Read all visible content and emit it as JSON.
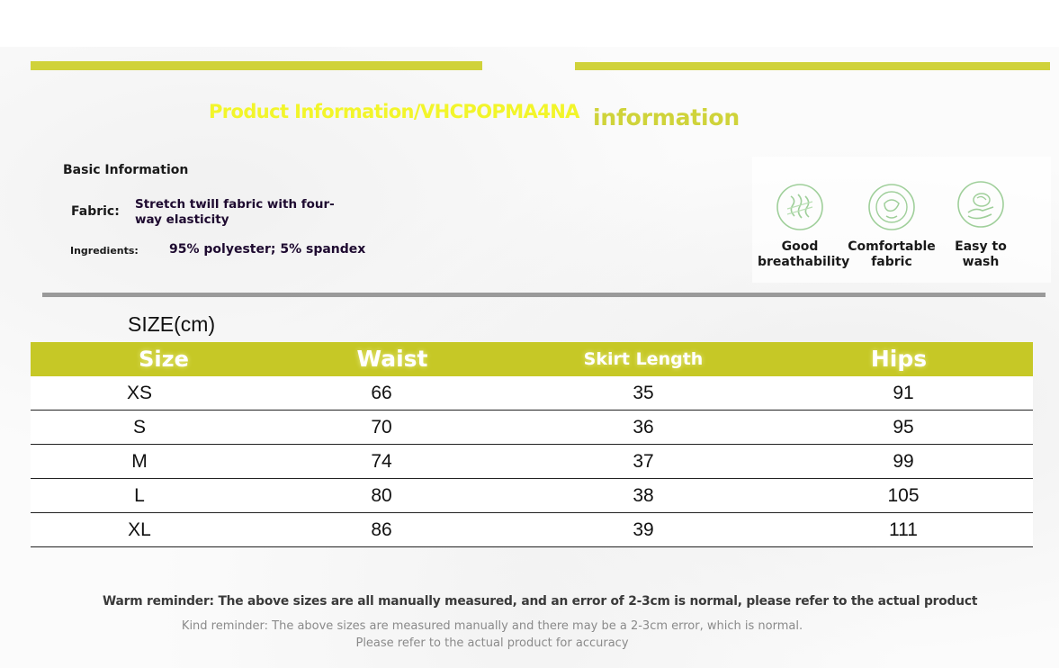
{
  "header": {
    "title": "Product Information/VHCPOPMA4NA",
    "side_title": "information",
    "accent_color": "#d0d23a"
  },
  "basic_info": {
    "heading": "Basic Information",
    "fabric_label": "Fabric:",
    "fabric_value": "Stretch twill fabric with four-way elasticity",
    "ingredients_label": "Ingredients:",
    "ingredients_value": "95% polyester; 5% spandex"
  },
  "features": [
    {
      "icon": "breathability-icon",
      "label": "Good breathability"
    },
    {
      "icon": "comfortable-fabric-icon",
      "label": "Comfortable fabric"
    },
    {
      "icon": "easy-wash-icon",
      "label": "Easy to wash"
    }
  ],
  "size_chart": {
    "heading": "SIZE(cm)",
    "header_color": "#c6c826",
    "columns": [
      "Size",
      "Waist",
      "Skirt Length",
      "Hips"
    ],
    "rows": [
      [
        "XS",
        "66",
        "35",
        "91"
      ],
      [
        "S",
        "70",
        "36",
        "95"
      ],
      [
        "M",
        "74",
        "37",
        "99"
      ],
      [
        "L",
        "80",
        "38",
        "105"
      ],
      [
        "XL",
        "86",
        "39",
        "111"
      ]
    ]
  },
  "reminders": {
    "warm": "Warm reminder: The above sizes are all manually measured, and an error of 2-3cm is normal, please refer to the actual product",
    "kind_line1": "Kind reminder: The above sizes are measured manually and there may be a 2-3cm error, which is normal.",
    "kind_line2": "Please refer to the actual product for accuracy"
  }
}
